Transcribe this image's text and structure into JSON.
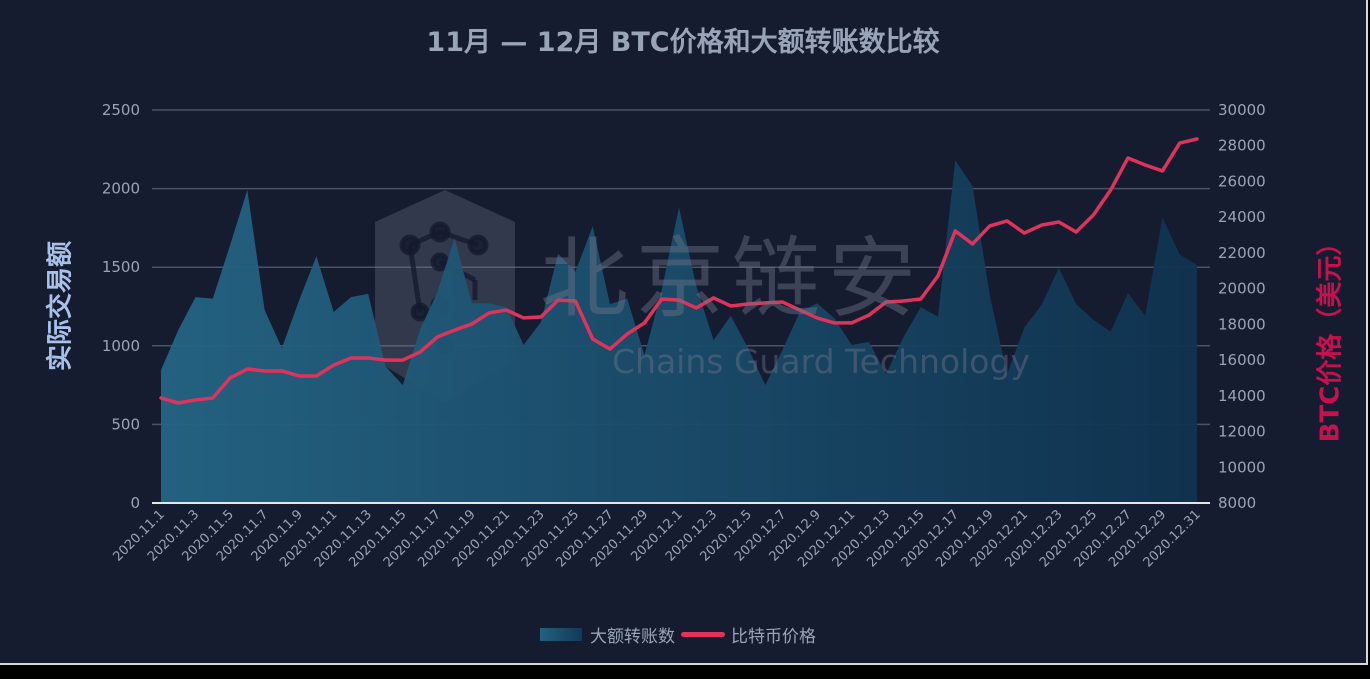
{
  "title": "11月 — 12月 BTC价格和大额转账数比较",
  "y_left_label": "实际交易额",
  "y_right_label": "BTC价格（美元）",
  "legend": {
    "area_label": "大额转账数",
    "line_label": "比特币价格"
  },
  "watermark": {
    "cn": "北京链安",
    "en": "Chains Guard Technology"
  },
  "colors": {
    "background": "#151c30",
    "area_start": "#246584",
    "area_end": "#0f3350",
    "line": "#e0335c",
    "right_axis_label": "#c8104f",
    "left_axis_label": "#a9c0e8",
    "text": "#9aa4b8",
    "grid": "#4a5266"
  },
  "chart_data": {
    "type": "area+line",
    "title": "11月 — 12月 BTC价格和大额转账数比较",
    "xlabel": "",
    "ylabel_left": "实际交易额",
    "ylabel_right": "BTC价格（美元）",
    "ylim_left": [
      0,
      2500
    ],
    "yticks_left": [
      0,
      500,
      1000,
      1500,
      2000,
      2500
    ],
    "ylim_right": [
      8000,
      30000
    ],
    "yticks_right": [
      8000,
      10000,
      12000,
      14000,
      16000,
      18000,
      20000,
      22000,
      24000,
      26000,
      28000,
      30000
    ],
    "grid": true,
    "legend_position": "bottom",
    "x": [
      "2020.11.1",
      "2020.11.2",
      "2020.11.3",
      "2020.11.4",
      "2020.11.5",
      "2020.11.6",
      "2020.11.7",
      "2020.11.8",
      "2020.11.9",
      "2020.11.10",
      "2020.11.11",
      "2020.11.12",
      "2020.11.13",
      "2020.11.14",
      "2020.11.15",
      "2020.11.16",
      "2020.11.17",
      "2020.11.18",
      "2020.11.19",
      "2020.11.20",
      "2020.11.21",
      "2020.11.22",
      "2020.11.23",
      "2020.11.24",
      "2020.11.25",
      "2020.11.26",
      "2020.11.27",
      "2020.11.28",
      "2020.11.29",
      "2020.11.30",
      "2020.12.1",
      "2020.12.2",
      "2020.12.3",
      "2020.12.4",
      "2020.12.5",
      "2020.12.6",
      "2020.12.7",
      "2020.12.8",
      "2020.12.9",
      "2020.12.10",
      "2020.12.11",
      "2020.12.12",
      "2020.12.13",
      "2020.12.14",
      "2020.12.15",
      "2020.12.16",
      "2020.12.17",
      "2020.12.18",
      "2020.12.19",
      "2020.12.20",
      "2020.12.21",
      "2020.12.22",
      "2020.12.23",
      "2020.12.24",
      "2020.12.25",
      "2020.12.26",
      "2020.12.27",
      "2020.12.28",
      "2020.12.29",
      "2020.12.30",
      "2020.12.31"
    ],
    "series": [
      {
        "name": "大额转账数",
        "type": "area",
        "axis": "left",
        "values": [
          846,
          1100,
          1310,
          1300,
          1640,
          1990,
          1228,
          985,
          1290,
          1570,
          1215,
          1310,
          1330,
          870,
          750,
          1100,
          1340,
          1685,
          1270,
          1270,
          1245,
          1005,
          1150,
          1585,
          1470,
          1760,
          1265,
          1300,
          940,
          1355,
          1880,
          1380,
          1035,
          1190,
          985,
          750,
          975,
          1215,
          1270,
          1175,
          1005,
          1025,
          820,
          1055,
          1245,
          1185,
          2180,
          2015,
          1320,
          820,
          1115,
          1260,
          1495,
          1265,
          1165,
          1090,
          1335,
          1190,
          1815,
          1580,
          1515
        ]
      },
      {
        "name": "比特币价格",
        "type": "line",
        "axis": "right",
        "values": [
          13880,
          13600,
          13770,
          13880,
          15000,
          15500,
          15390,
          15390,
          15110,
          15110,
          15720,
          16120,
          16120,
          16000,
          16000,
          16450,
          17290,
          17680,
          18020,
          18640,
          18800,
          18360,
          18410,
          19360,
          19310,
          17180,
          16620,
          17460,
          18080,
          19420,
          19360,
          18920,
          19480,
          19030,
          19140,
          19200,
          19250,
          18800,
          18360,
          18080,
          18080,
          18520,
          19250,
          19310,
          19420,
          20710,
          23230,
          22500,
          23510,
          23790,
          23110,
          23560,
          23730,
          23170,
          24120,
          25520,
          27310,
          26920,
          26590,
          28150,
          28380
        ]
      }
    ],
    "xtick_labels_shown": [
      "2020.11.1",
      "2020.11.3",
      "2020.11.5",
      "2020.11.7",
      "2020.11.9",
      "2020.11.11",
      "2020.11.13",
      "2020.11.15",
      "2020.11.17",
      "2020.11.19",
      "2020.11.21",
      "2020.11.23",
      "2020.11.25",
      "2020.11.27",
      "2020.11.29",
      "2020.12.1",
      "2020.12.3",
      "2020.12.5",
      "2020.12.7",
      "2020.12.9",
      "2020.12.11",
      "2020.12.13",
      "2020.12.15",
      "2020.12.17",
      "2020.12.19",
      "2020.12.21",
      "2020.12.23",
      "2020.12.25",
      "2020.12.27",
      "2020.12.29",
      "2020.12.31"
    ]
  }
}
